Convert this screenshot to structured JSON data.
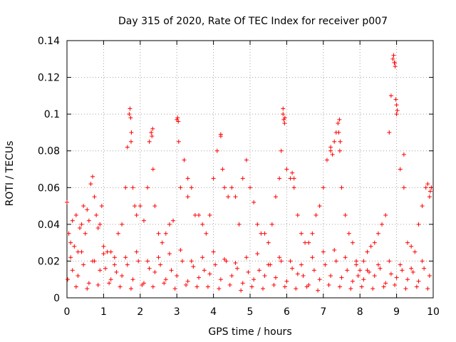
{
  "chart_data": {
    "type": "scatter",
    "title": "Day 315 of 2020, Rate Of TEC Index for receiver p007",
    "xlabel": "GPS time / hours",
    "ylabel": "ROTI / TECUs",
    "xlim": [
      0,
      10
    ],
    "ylim": [
      0,
      0.14
    ],
    "xticks": [
      "0",
      "1",
      "2",
      "3",
      "4",
      "5",
      "6",
      "7",
      "8",
      "9",
      "10"
    ],
    "yticks": [
      "0",
      "0.02",
      "0.04",
      "0.06",
      "0.08",
      "0.1",
      "0.12",
      "0.14"
    ],
    "grid": true,
    "marker": "+",
    "color": "#ff0000",
    "series": [
      {
        "name": "ROTI",
        "x": [
          0.0,
          0.05,
          0.1,
          0.15,
          0.2,
          0.25,
          0.3,
          0.35,
          0.4,
          0.45,
          0.5,
          0.55,
          0.6,
          0.65,
          0.7,
          0.75,
          0.8,
          0.85,
          0.9,
          0.95,
          1.0,
          1.1,
          1.2,
          1.3,
          1.4,
          1.5,
          1.6,
          1.65,
          1.7,
          1.75,
          1.8,
          1.85,
          1.9,
          2.0,
          2.1,
          2.2,
          2.25,
          2.3,
          2.35,
          2.4,
          2.5,
          2.6,
          2.7,
          2.8,
          2.9,
          3.0,
          3.05,
          3.1,
          3.2,
          3.3,
          3.4,
          3.5,
          3.6,
          3.7,
          3.8,
          3.9,
          4.0,
          4.1,
          4.2,
          4.3,
          4.4,
          4.5,
          4.6,
          4.7,
          4.8,
          4.9,
          5.0,
          5.1,
          5.2,
          5.3,
          5.4,
          5.5,
          5.6,
          5.7,
          5.8,
          5.85,
          5.9,
          5.95,
          6.0,
          6.1,
          6.2,
          6.3,
          6.4,
          6.5,
          6.6,
          6.7,
          6.8,
          6.9,
          7.0,
          7.1,
          7.2,
          7.3,
          7.35,
          7.4,
          7.45,
          7.5,
          7.6,
          7.7,
          7.8,
          7.9,
          8.0,
          8.1,
          8.2,
          8.3,
          8.4,
          8.5,
          8.6,
          8.7,
          8.8,
          8.85,
          8.9,
          8.95,
          9.0,
          9.1,
          9.2,
          9.3,
          9.4,
          9.5,
          9.6,
          9.7,
          9.8,
          9.85,
          9.9,
          0.02,
          0.3,
          0.6,
          0.9,
          1.2,
          1.5,
          1.8,
          2.1,
          2.4,
          2.7,
          3.0,
          3.3,
          3.6,
          3.9,
          4.2,
          4.5,
          4.8,
          5.1,
          5.4,
          5.7,
          6.0,
          6.3,
          6.6,
          6.9,
          7.2,
          7.5,
          7.8,
          8.1,
          8.4,
          8.7,
          9.0,
          9.3,
          9.6,
          9.9,
          0.15,
          0.45,
          0.75,
          1.05,
          1.35,
          1.65,
          1.95,
          2.25,
          2.55,
          2.85,
          3.15,
          3.45,
          3.75,
          4.05,
          4.35,
          4.65,
          4.95,
          5.25,
          5.55,
          5.85,
          6.15,
          6.45,
          6.75,
          7.05,
          7.35,
          7.65,
          7.95,
          8.25,
          8.55,
          8.85,
          9.15,
          9.45,
          9.75,
          0.1,
          0.4,
          0.7,
          1.0,
          1.3,
          1.6,
          1.9,
          2.2,
          2.5,
          2.8,
          3.1,
          3.4,
          3.7,
          4.0,
          4.3,
          4.6,
          4.9,
          5.2,
          5.5,
          5.8,
          6.1,
          6.4,
          6.7,
          7.0,
          7.3,
          7.6,
          7.9,
          8.2,
          8.5,
          8.8,
          9.1,
          9.4,
          9.7,
          0.25,
          0.55,
          0.85,
          1.15,
          1.45,
          1.75,
          2.05,
          2.35,
          2.65,
          2.95,
          3.25,
          3.55,
          3.85,
          4.15,
          4.45,
          4.75,
          5.05,
          5.35,
          5.65,
          5.95,
          6.25,
          6.55,
          6.85,
          7.15,
          7.45,
          7.75,
          8.05,
          8.35,
          8.65,
          8.95,
          9.25,
          9.55,
          9.85,
          1.72,
          1.74,
          1.76,
          2.32,
          2.34,
          3.02,
          3.04,
          3.3,
          4.2,
          4.25,
          5.9,
          5.92,
          5.94,
          6.15,
          6.2,
          7.2,
          7.25,
          7.42,
          7.44,
          7.46,
          8.92,
          8.94,
          8.96,
          8.98,
          9.0,
          9.02,
          9.2,
          9.92,
          9.95
        ],
        "y": [
          0.052,
          0.035,
          0.03,
          0.042,
          0.028,
          0.045,
          0.025,
          0.038,
          0.04,
          0.05,
          0.035,
          0.048,
          0.042,
          0.062,
          0.066,
          0.055,
          0.045,
          0.038,
          0.04,
          0.05,
          0.028,
          0.025,
          0.025,
          0.022,
          0.035,
          0.04,
          0.06,
          0.082,
          0.1,
          0.085,
          0.06,
          0.05,
          0.045,
          0.05,
          0.042,
          0.06,
          0.085,
          0.09,
          0.07,
          0.05,
          0.035,
          0.03,
          0.035,
          0.04,
          0.042,
          0.097,
          0.085,
          0.06,
          0.075,
          0.055,
          0.06,
          0.045,
          0.045,
          0.04,
          0.035,
          0.045,
          0.065,
          0.08,
          0.088,
          0.06,
          0.055,
          0.06,
          0.055,
          0.04,
          0.065,
          0.075,
          0.06,
          0.052,
          0.04,
          0.035,
          0.035,
          0.03,
          0.04,
          0.055,
          0.065,
          0.08,
          0.1,
          0.098,
          0.07,
          0.065,
          0.06,
          0.045,
          0.035,
          0.03,
          0.03,
          0.035,
          0.045,
          0.05,
          0.06,
          0.075,
          0.08,
          0.085,
          0.09,
          0.095,
          0.08,
          0.06,
          0.045,
          0.035,
          0.03,
          0.02,
          0.015,
          0.02,
          0.025,
          0.028,
          0.03,
          0.035,
          0.04,
          0.045,
          0.09,
          0.11,
          0.13,
          0.128,
          0.1,
          0.07,
          0.06,
          0.03,
          0.028,
          0.025,
          0.04,
          0.05,
          0.06,
          0.062,
          0.055,
          0.01,
          0.012,
          0.008,
          0.015,
          0.01,
          0.012,
          0.01,
          0.008,
          0.014,
          0.01,
          0.012,
          0.009,
          0.011,
          0.013,
          0.01,
          0.012,
          0.008,
          0.01,
          0.012,
          0.011,
          0.009,
          0.013,
          0.007,
          0.01,
          0.012,
          0.011,
          0.009,
          0.01,
          0.012,
          0.008,
          0.011,
          0.01,
          0.009,
          0.012,
          0.015,
          0.018,
          0.02,
          0.016,
          0.014,
          0.018,
          0.02,
          0.016,
          0.018,
          0.015,
          0.02,
          0.017,
          0.015,
          0.018,
          0.02,
          0.016,
          0.014,
          0.015,
          0.018,
          0.02,
          0.016,
          0.012,
          0.015,
          0.018,
          0.02,
          0.015,
          0.012,
          0.014,
          0.016,
          0.013,
          0.015,
          0.014,
          0.016,
          0.022,
          0.025,
          0.02,
          0.024,
          0.018,
          0.022,
          0.025,
          0.02,
          0.022,
          0.024,
          0.026,
          0.02,
          0.022,
          0.025,
          0.021,
          0.019,
          0.022,
          0.024,
          0.018,
          0.022,
          0.02,
          0.018,
          0.022,
          0.025,
          0.026,
          0.022,
          0.018,
          0.015,
          0.018,
          0.02,
          0.018,
          0.016,
          0.02,
          0.006,
          0.005,
          0.007,
          0.008,
          0.006,
          0.005,
          0.007,
          0.006,
          0.008,
          0.005,
          0.007,
          0.006,
          0.006,
          0.005,
          0.007,
          0.004,
          0.006,
          0.005,
          0.007,
          0.006,
          0.005,
          0.006,
          0.004,
          0.007,
          0.006,
          0.005,
          0.006,
          0.005,
          0.006,
          0.007,
          0.005,
          0.006,
          0.005,
          0.103,
          0.098,
          0.09,
          0.088,
          0.092,
          0.098,
          0.096,
          0.065,
          0.089,
          0.07,
          0.103,
          0.097,
          0.095,
          0.068,
          0.065,
          0.082,
          0.078,
          0.09,
          0.097,
          0.085,
          0.132,
          0.128,
          0.126,
          0.108,
          0.105,
          0.102,
          0.078,
          0.058,
          0.06
        ]
      }
    ]
  }
}
